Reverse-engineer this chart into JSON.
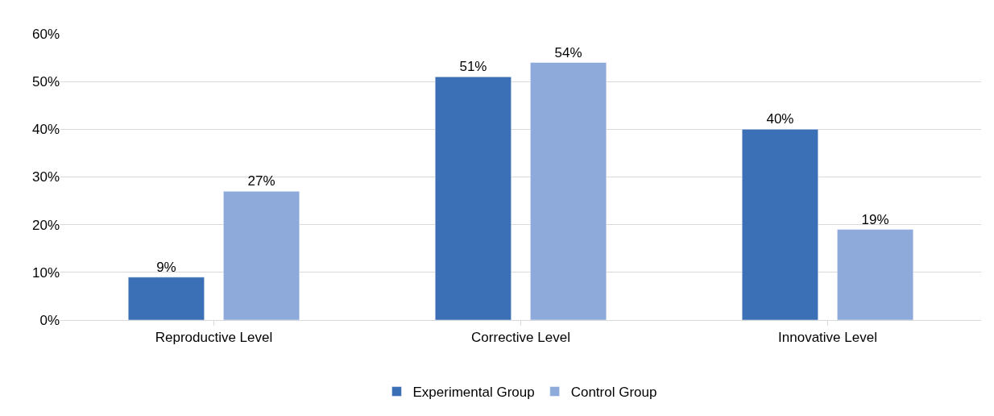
{
  "chart_data": {
    "type": "bar",
    "categories": [
      "Reproductive Level",
      "Corrective Level",
      "Innovative Level"
    ],
    "series": [
      {
        "name": "Experimental Group",
        "color": "#3b6fb6",
        "values": [
          9,
          51,
          40
        ],
        "value_labels": [
          "9%",
          "51%",
          "40%"
        ]
      },
      {
        "name": "Control Group",
        "color": "#8eaadb",
        "values": [
          27,
          54,
          19
        ],
        "value_labels": [
          "27%",
          "54%",
          "19%"
        ]
      }
    ],
    "ylim": [
      0,
      60
    ],
    "yticks": [
      {
        "value": 0,
        "label": "0%"
      },
      {
        "value": 10,
        "label": "10%"
      },
      {
        "value": 20,
        "label": "20%"
      },
      {
        "value": 30,
        "label": "30%"
      },
      {
        "value": 40,
        "label": "40%"
      },
      {
        "value": 50,
        "label": "50%"
      },
      {
        "value": 60,
        "label": "60%"
      }
    ],
    "grid": "y",
    "legend": "bottom"
  }
}
